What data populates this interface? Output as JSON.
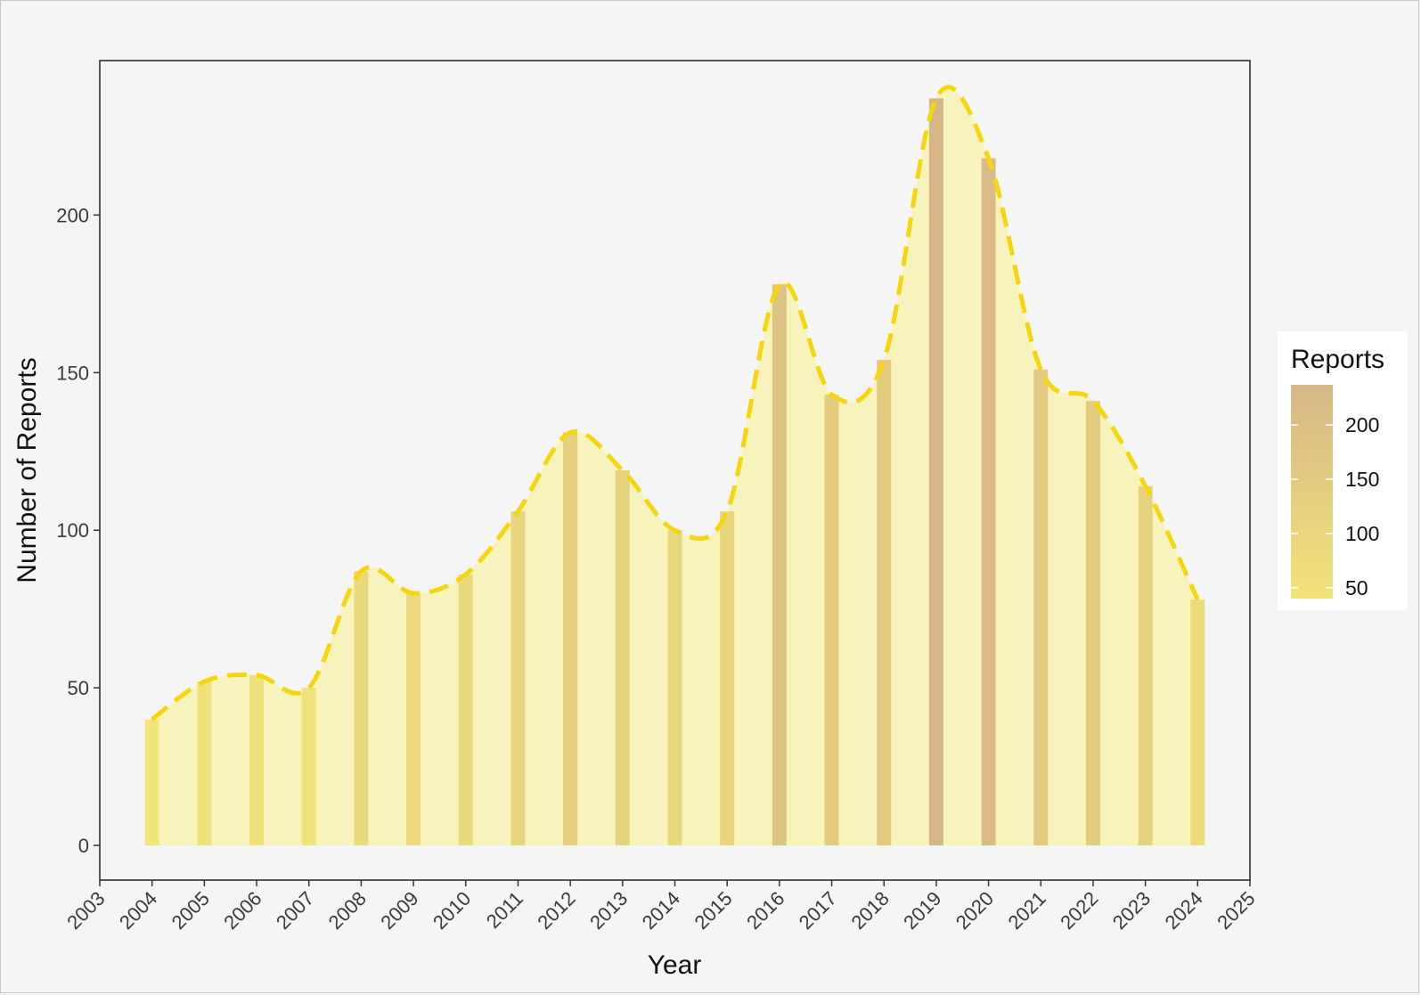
{
  "chart_data": {
    "type": "bar",
    "xlabel": "Year",
    "ylabel": "Number of Reports",
    "x_ticks": [
      "2003",
      "2004",
      "2005",
      "2006",
      "2007",
      "2008",
      "2009",
      "2010",
      "2011",
      "2012",
      "2013",
      "2014",
      "2015",
      "2016",
      "2017",
      "2018",
      "2019",
      "2020",
      "2021",
      "2022",
      "2023",
      "2024",
      "2025"
    ],
    "y_ticks": [
      "0",
      "50",
      "100",
      "150",
      "200"
    ],
    "xlim": [
      2003,
      2025
    ],
    "ylim": [
      -11,
      249
    ],
    "years": [
      2004,
      2005,
      2006,
      2007,
      2008,
      2009,
      2010,
      2011,
      2012,
      2013,
      2014,
      2015,
      2016,
      2017,
      2018,
      2019,
      2020,
      2021,
      2022,
      2023,
      2024
    ],
    "values": [
      40,
      52,
      54,
      50,
      87,
      80,
      86,
      106,
      131,
      119,
      100,
      106,
      178,
      143,
      154,
      237,
      218,
      151,
      141,
      114,
      78
    ],
    "overlays": [
      "smoothed area fill",
      "dashed line through values"
    ],
    "grid": false,
    "colors": {
      "panel_background": "#f5f5f5",
      "area_fill": "#f8f2bd",
      "line": "#f5d60f",
      "bar_low": "#f2e57a",
      "bar_high": "#d6b686"
    },
    "legend": {
      "title": "Reports",
      "type": "colorbar",
      "placement": "right",
      "range": [
        40,
        237
      ],
      "labels": [
        "200",
        "150",
        "100",
        "50"
      ]
    }
  }
}
